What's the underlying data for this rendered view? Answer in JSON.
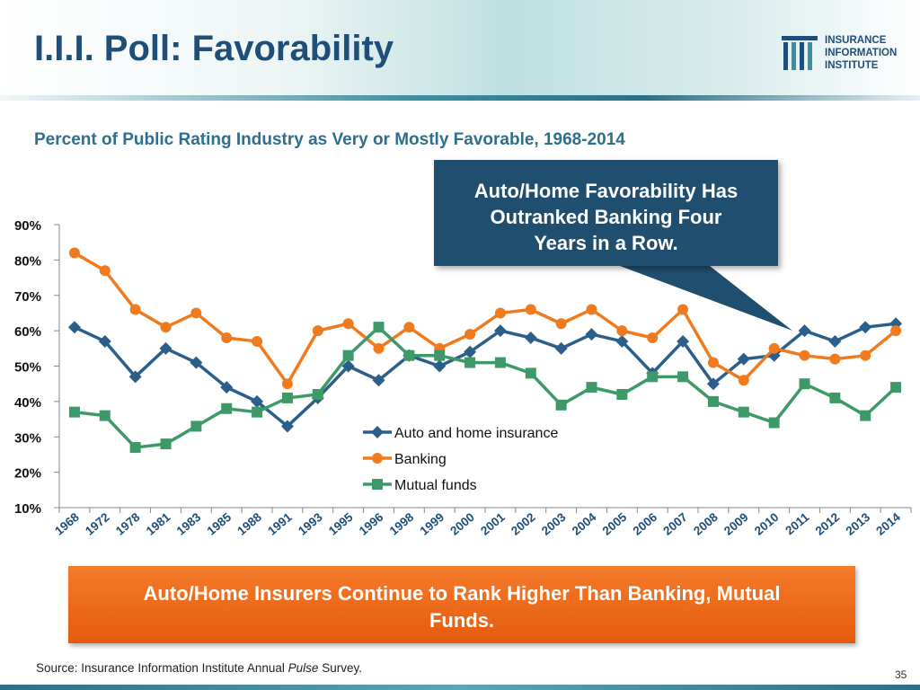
{
  "header": {
    "title": "I.I.I. Poll: Favorability"
  },
  "logo": {
    "lines": [
      "INSURANCE",
      "INFORMATION",
      "INSTITUTE"
    ]
  },
  "subtitle": "Percent of Public Rating Industry as Very or Mostly Favorable, 1968-2014",
  "callout": {
    "text_lines": [
      "Auto/Home Favorability Has",
      "Outranked Banking Four",
      "Years in a Row."
    ]
  },
  "conclusion": {
    "text_lines": [
      "Auto/Home Insurers Continue to Rank Higher Than Banking, Mutual",
      "Funds."
    ]
  },
  "source": {
    "prefix": "Source: Insurance Information Institute Annual ",
    "italic": "Pulse",
    "suffix": " Survey."
  },
  "page_number": "35",
  "colors": {
    "auto": "#2b5f8a",
    "banking": "#f07a1e",
    "mutual": "#3d9a68",
    "title": "#1f4e79"
  },
  "chart_data": {
    "type": "line",
    "title": "Percent of Public Rating Industry as Very or Mostly Favorable, 1968-2014",
    "xlabel": "",
    "ylabel": "",
    "ylim": [
      10,
      90
    ],
    "yticks": [
      "10%",
      "20%",
      "30%",
      "40%",
      "50%",
      "60%",
      "70%",
      "80%",
      "90%"
    ],
    "ytick_values": [
      10,
      20,
      30,
      40,
      50,
      60,
      70,
      80,
      90
    ],
    "categories": [
      "1968",
      "1972",
      "1978",
      "1981",
      "1983",
      "1985",
      "1988",
      "1991",
      "1993",
      "1995",
      "1996",
      "1998",
      "1999",
      "2000",
      "2001",
      "2002",
      "2003",
      "2004",
      "2005",
      "2006",
      "2007",
      "2008",
      "2009",
      "2010",
      "2011",
      "2012",
      "2013",
      "2014"
    ],
    "legend_position": "center",
    "series": [
      {
        "name": "Auto and home insurance",
        "color": "#2b5f8a",
        "values": [
          61,
          57,
          47,
          55,
          51,
          44,
          40,
          33,
          41,
          50,
          46,
          53,
          50,
          54,
          60,
          58,
          55,
          59,
          57,
          48,
          57,
          45,
          52,
          53,
          60,
          57,
          61,
          62
        ]
      },
      {
        "name": "Banking",
        "color": "#f07a1e",
        "values": [
          82,
          77,
          66,
          61,
          65,
          58,
          57,
          45,
          60,
          62,
          55,
          61,
          55,
          59,
          65,
          66,
          62,
          66,
          60,
          58,
          66,
          51,
          46,
          55,
          53,
          52,
          53,
          60
        ]
      },
      {
        "name": "Mutual funds",
        "color": "#3d9a68",
        "values": [
          37,
          36,
          27,
          28,
          33,
          38,
          37,
          41,
          42,
          53,
          61,
          53,
          53,
          51,
          51,
          48,
          39,
          44,
          42,
          47,
          47,
          40,
          37,
          34,
          45,
          41,
          36,
          44
        ]
      }
    ]
  }
}
